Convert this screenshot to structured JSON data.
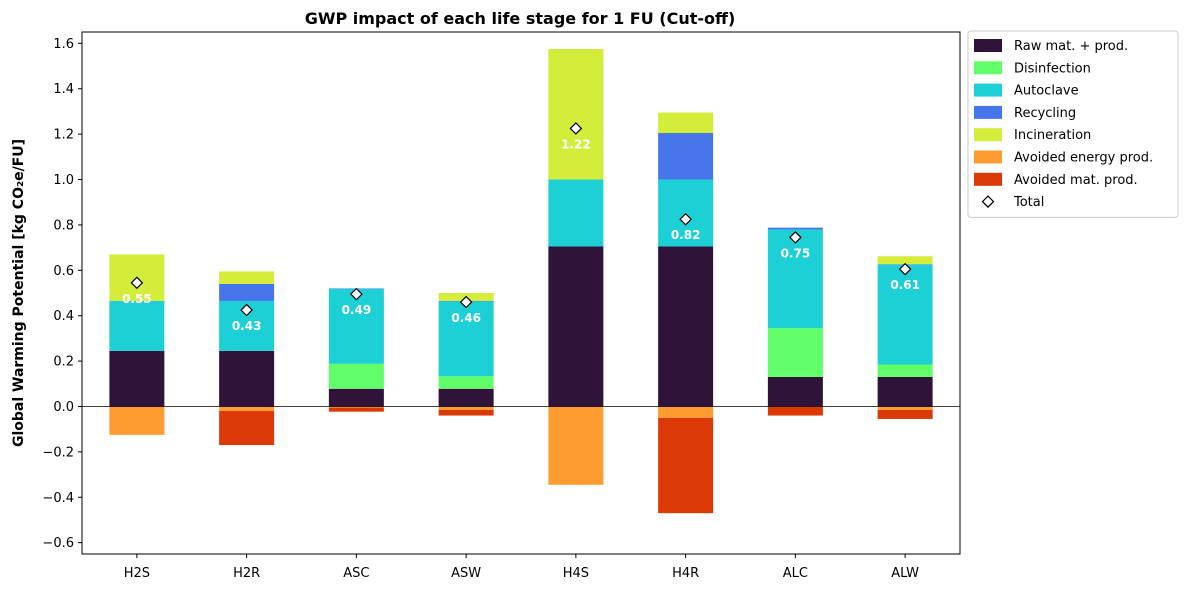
{
  "chart_data": {
    "type": "bar",
    "stacked": true,
    "title": "GWP impact of each life stage for 1 FU (Cut-off)",
    "ylabel": "Global Warming Potential [kg CO₂e/FU]",
    "xlabel": "",
    "ylim": [
      -0.65,
      1.65
    ],
    "yticks": [
      -0.6,
      -0.4,
      -0.2,
      0.0,
      0.2,
      0.4,
      0.6,
      0.8,
      1.0,
      1.2,
      1.4,
      1.6
    ],
    "ytick_labels": [
      "−0.6",
      "−0.4",
      "−0.2",
      "0.0",
      "0.2",
      "0.4",
      "0.6",
      "0.8",
      "1.0",
      "1.2",
      "1.4",
      "1.6"
    ],
    "legend_position": "outside-top-right",
    "categories": [
      "H2S",
      "H2R",
      "ASC",
      "ASW",
      "H4S",
      "H4R",
      "ALC",
      "ALW"
    ],
    "series": [
      {
        "name": "Raw mat. + prod.",
        "color": "#2f1339",
        "values": [
          0.245,
          0.245,
          0.078,
          0.078,
          0.705,
          0.705,
          0.13,
          0.13
        ]
      },
      {
        "name": "Disinfection",
        "color": "#62fe6a",
        "values": [
          0.0,
          0.0,
          0.11,
          0.055,
          0.0,
          0.0,
          0.215,
          0.055
        ]
      },
      {
        "name": "Autoclave",
        "color": "#1dd0d5",
        "values": [
          0.22,
          0.22,
          0.33,
          0.33,
          0.295,
          0.295,
          0.435,
          0.44
        ]
      },
      {
        "name": "Recycling",
        "color": "#4776ea",
        "values": [
          0.0,
          0.075,
          0.002,
          0.002,
          0.0,
          0.205,
          0.008,
          0.002
        ]
      },
      {
        "name": "Incineration",
        "color": "#d4ec3a",
        "values": [
          0.205,
          0.055,
          0.0,
          0.035,
          0.575,
          0.09,
          0.0,
          0.035
        ]
      },
      {
        "name": "Avoided energy prod.",
        "color": "#fd9d31",
        "values": [
          -0.125,
          -0.02,
          -0.005,
          -0.015,
          -0.345,
          -0.05,
          -0.002,
          -0.015
        ]
      },
      {
        "name": "Avoided mat. prod.",
        "color": "#db3a07",
        "values": [
          0.0,
          -0.15,
          -0.018,
          -0.025,
          0.0,
          -0.42,
          -0.038,
          -0.04
        ]
      }
    ],
    "totals": {
      "name": "Total",
      "values": [
        0.545,
        0.425,
        0.495,
        0.46,
        1.225,
        0.825,
        0.745,
        0.605
      ],
      "labels": [
        "0.55",
        "0.43",
        "0.49",
        "0.46",
        "1.22",
        "0.82",
        "0.75",
        "0.61"
      ]
    }
  }
}
